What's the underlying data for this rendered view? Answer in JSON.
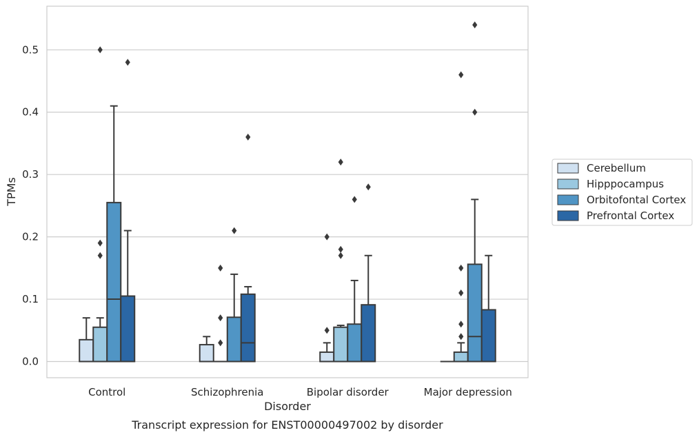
{
  "chart_data": {
    "type": "boxplot",
    "title": "",
    "caption": "Transcript expression for ENST00000497002 by disorder",
    "xlabel": "Disorder",
    "ylabel": "TPMs",
    "ylim": [
      -0.026,
      0.57
    ],
    "yticks": [
      0.0,
      0.1,
      0.2,
      0.3,
      0.4,
      0.5
    ],
    "ytick_labels": [
      "0.0",
      "0.1",
      "0.2",
      "0.3",
      "0.4",
      "0.5"
    ],
    "grid": "horizontal",
    "legend_position": "right",
    "categories": [
      "Control",
      "Schizophrenia",
      "Bipolar disorder",
      "Major depression"
    ],
    "series": [
      {
        "name": "Cerebellum",
        "color": "#d0e1f1",
        "boxes": [
          {
            "q1": 0.0,
            "median": 0.0,
            "q3": 0.035,
            "whisker_low": 0.0,
            "whisker_high": 0.07,
            "outliers": []
          },
          {
            "q1": 0.0,
            "median": 0.0,
            "q3": 0.027,
            "whisker_low": 0.0,
            "whisker_high": 0.04,
            "outliers": []
          },
          {
            "q1": 0.0,
            "median": 0.0,
            "q3": 0.015,
            "whisker_low": 0.0,
            "whisker_high": 0.03,
            "outliers": [
              0.05,
              0.2
            ]
          },
          {
            "q1": 0.0,
            "median": 0.0,
            "q3": 0.0,
            "whisker_low": 0.0,
            "whisker_high": 0.0,
            "outliers": []
          }
        ]
      },
      {
        "name": "Hipppocampus",
        "color": "#9ac8e0",
        "boxes": [
          {
            "q1": 0.0,
            "median": 0.0,
            "q3": 0.055,
            "whisker_low": 0.0,
            "whisker_high": 0.07,
            "outliers": [
              0.17,
              0.19,
              0.5
            ]
          },
          {
            "q1": 0.0,
            "median": 0.0,
            "q3": 0.0,
            "whisker_low": 0.0,
            "whisker_high": 0.0,
            "outliers": [
              0.03,
              0.07,
              0.15
            ]
          },
          {
            "q1": 0.0,
            "median": 0.0,
            "q3": 0.055,
            "whisker_low": 0.0,
            "whisker_high": 0.058,
            "outliers": [
              0.17,
              0.18,
              0.32
            ]
          },
          {
            "q1": 0.0,
            "median": 0.0,
            "q3": 0.015,
            "whisker_low": 0.0,
            "whisker_high": 0.03,
            "outliers": [
              0.04,
              0.06,
              0.11,
              0.15,
              0.46
            ]
          }
        ]
      },
      {
        "name": "Orbitofontal Cortex",
        "color": "#5095c5",
        "boxes": [
          {
            "q1": 0.0,
            "median": 0.1,
            "q3": 0.255,
            "whisker_low": 0.0,
            "whisker_high": 0.41,
            "outliers": []
          },
          {
            "q1": 0.0,
            "median": 0.0,
            "q3": 0.071,
            "whisker_low": 0.0,
            "whisker_high": 0.14,
            "outliers": [
              0.21
            ]
          },
          {
            "q1": 0.0,
            "median": 0.0,
            "q3": 0.06,
            "whisker_low": 0.0,
            "whisker_high": 0.13,
            "outliers": [
              0.26
            ]
          },
          {
            "q1": 0.0,
            "median": 0.04,
            "q3": 0.156,
            "whisker_low": 0.0,
            "whisker_high": 0.26,
            "outliers": [
              0.4,
              0.54
            ]
          }
        ]
      },
      {
        "name": "Prefrontal Cortex",
        "color": "#2b67a5",
        "boxes": [
          {
            "q1": 0.0,
            "median": 0.0,
            "q3": 0.105,
            "whisker_low": 0.0,
            "whisker_high": 0.21,
            "outliers": [
              0.48
            ]
          },
          {
            "q1": 0.0,
            "median": 0.03,
            "q3": 0.108,
            "whisker_low": 0.0,
            "whisker_high": 0.12,
            "outliers": [
              0.36
            ]
          },
          {
            "q1": 0.0,
            "median": 0.0,
            "q3": 0.091,
            "whisker_low": 0.0,
            "whisker_high": 0.17,
            "outliers": [
              0.28
            ]
          },
          {
            "q1": 0.0,
            "median": 0.0,
            "q3": 0.083,
            "whisker_low": 0.0,
            "whisker_high": 0.17,
            "outliers": []
          }
        ]
      }
    ]
  }
}
